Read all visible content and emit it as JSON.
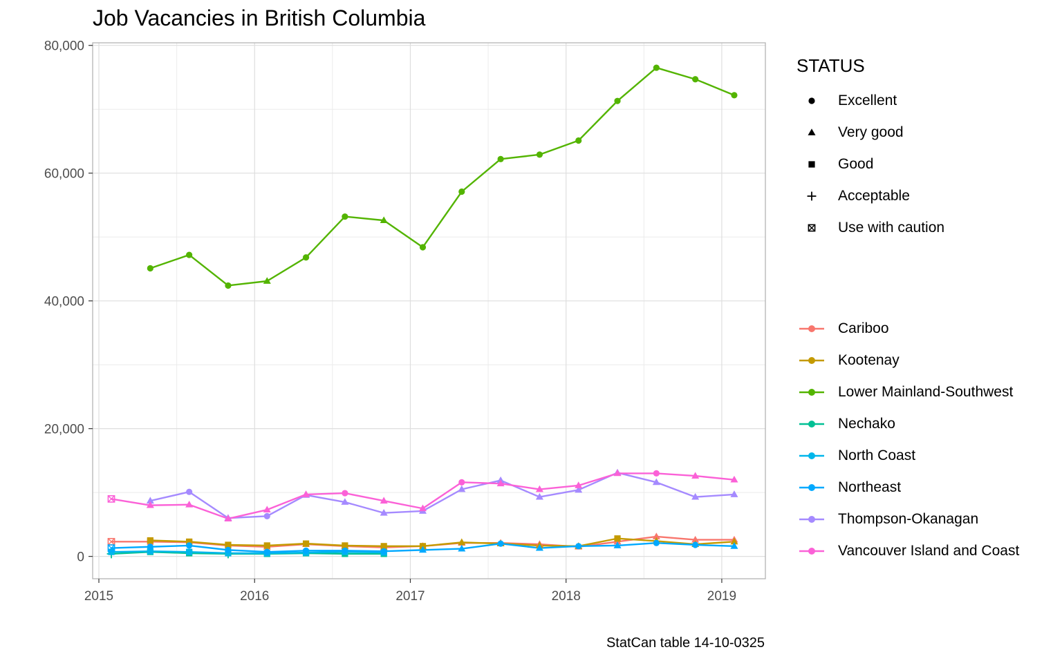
{
  "chart_data": {
    "type": "line",
    "title": "Job Vacancies in British Columbia",
    "caption": "StatCan table 14-10-0325",
    "xlabel": "",
    "ylabel": "",
    "xlim": [
      2014.96,
      2019.28
    ],
    "ylim": [
      -3500,
      80400
    ],
    "xticks": [
      2015,
      2016,
      2017,
      2018,
      2019
    ],
    "xtick_labels": [
      "2015",
      "2016",
      "2017",
      "2018",
      "2019"
    ],
    "yticks": [
      0,
      20000,
      40000,
      60000,
      80000
    ],
    "ytick_labels": [
      "0",
      "20,000",
      "40,000",
      "60,000",
      "80,000"
    ],
    "grid": true,
    "status_legend": {
      "title": "STATUS",
      "items": [
        {
          "label": "Excellent",
          "shape": "circle"
        },
        {
          "label": "Very good",
          "shape": "triangle"
        },
        {
          "label": "Good",
          "shape": "square"
        },
        {
          "label": "Acceptable",
          "shape": "plus"
        },
        {
          "label": "Use with caution",
          "shape": "boxx"
        }
      ]
    },
    "x": [
      2015.08,
      2015.33,
      2015.58,
      2015.83,
      2016.08,
      2016.33,
      2016.58,
      2016.83,
      2017.08,
      2017.33,
      2017.58,
      2017.83,
      2018.08,
      2018.33,
      2018.58,
      2018.83,
      2019.08
    ],
    "series": [
      {
        "name": "Cariboo",
        "color": "#F8766D",
        "values": [
          2300,
          2300,
          2200,
          1700,
          1500,
          1900,
          1600,
          1400,
          1600,
          2100,
          2100,
          1900,
          1500,
          2300,
          3100,
          2600,
          2600
        ],
        "shapes": [
          "boxx",
          "square",
          "square",
          "square",
          "triangle",
          "triangle",
          "triangle",
          "triangle",
          "triangle",
          "triangle",
          "triangle",
          "triangle",
          "triangle",
          "triangle",
          "triangle",
          "triangle",
          "triangle"
        ]
      },
      {
        "name": "Kootenay",
        "color": "#C49A00",
        "values": [
          null,
          2500,
          2300,
          1800,
          1700,
          2000,
          1700,
          1600,
          1600,
          2200,
          2000,
          1700,
          1600,
          2800,
          2400,
          1900,
          2300
        ],
        "shapes": [
          null,
          "square",
          "square",
          "square",
          "square",
          "square",
          "square",
          "square",
          "square",
          "triangle",
          "triangle",
          "triangle",
          "triangle",
          "square",
          "triangle",
          "triangle",
          "triangle"
        ]
      },
      {
        "name": "Lower Mainland-Southwest",
        "color": "#53B400",
        "values": [
          null,
          45100,
          47200,
          42400,
          43100,
          46800,
          53200,
          52600,
          48400,
          57100,
          62200,
          62900,
          65100,
          71300,
          76500,
          74700,
          72200
        ],
        "shapes": [
          null,
          "circle",
          "circle",
          "circle",
          "triangle",
          "circle",
          "circle",
          "triangle",
          "circle",
          "circle",
          "circle",
          "circle",
          "circle",
          "circle",
          "circle",
          "circle",
          "circle"
        ]
      },
      {
        "name": "Nechako",
        "color": "#00C094",
        "values": [
          400,
          700,
          500,
          400,
          400,
          500,
          400,
          400,
          null,
          null,
          null,
          null,
          null,
          null,
          null,
          null,
          null
        ],
        "shapes": [
          "plus",
          "square",
          "square",
          "plus",
          "square",
          "square",
          "square",
          "square",
          null,
          null,
          null,
          null,
          null,
          null,
          null,
          null,
          null
        ]
      },
      {
        "name": "North Coast",
        "color": "#00B6EB",
        "values": [
          700,
          800,
          700,
          500,
          500,
          600,
          700,
          600,
          null,
          null,
          null,
          null,
          null,
          null,
          null,
          null,
          null
        ],
        "shapes": [
          "square",
          "square",
          "square",
          "square",
          "square",
          "square",
          "square",
          "square",
          null,
          null,
          null,
          null,
          null,
          null,
          null,
          null,
          null
        ]
      },
      {
        "name": "Northeast",
        "color": "#00A9FF",
        "values": [
          1300,
          1500,
          1700,
          1000,
          700,
          900,
          900,
          800,
          1000,
          1200,
          2000,
          1300,
          1600,
          1700,
          2100,
          1800,
          1600
        ],
        "shapes": [
          "boxx",
          "circle",
          "circle",
          "circle",
          "circle",
          "circle",
          "circle",
          "circle",
          "triangle",
          "triangle",
          "circle",
          "triangle",
          "circle",
          "triangle",
          "circle",
          "circle",
          "triangle"
        ]
      },
      {
        "name": "Thompson-Okanagan",
        "color": "#A58AFF",
        "values": [
          null,
          8700,
          10100,
          6000,
          6300,
          9600,
          8500,
          6800,
          7100,
          10500,
          11900,
          9300,
          10400,
          13100,
          11600,
          9300,
          9700
        ],
        "shapes": [
          null,
          "triangle",
          "circle",
          "triangle",
          "circle",
          "triangle",
          "triangle",
          "triangle",
          "triangle",
          "triangle",
          "triangle",
          "triangle",
          "triangle",
          "triangle",
          "triangle",
          "triangle",
          "triangle"
        ]
      },
      {
        "name": "Vancouver Island and Coast",
        "color": "#FB61D7",
        "values": [
          9000,
          8000,
          8100,
          5900,
          7300,
          9700,
          9900,
          8700,
          7500,
          11600,
          11400,
          10500,
          11100,
          13000,
          13000,
          12600,
          12000
        ],
        "shapes": [
          "boxx",
          "triangle",
          "triangle",
          "triangle",
          "triangle",
          "triangle",
          "circle",
          "triangle",
          "triangle",
          "circle",
          "triangle",
          "triangle",
          "triangle",
          "triangle",
          "circle",
          "triangle",
          "triangle"
        ]
      }
    ]
  }
}
